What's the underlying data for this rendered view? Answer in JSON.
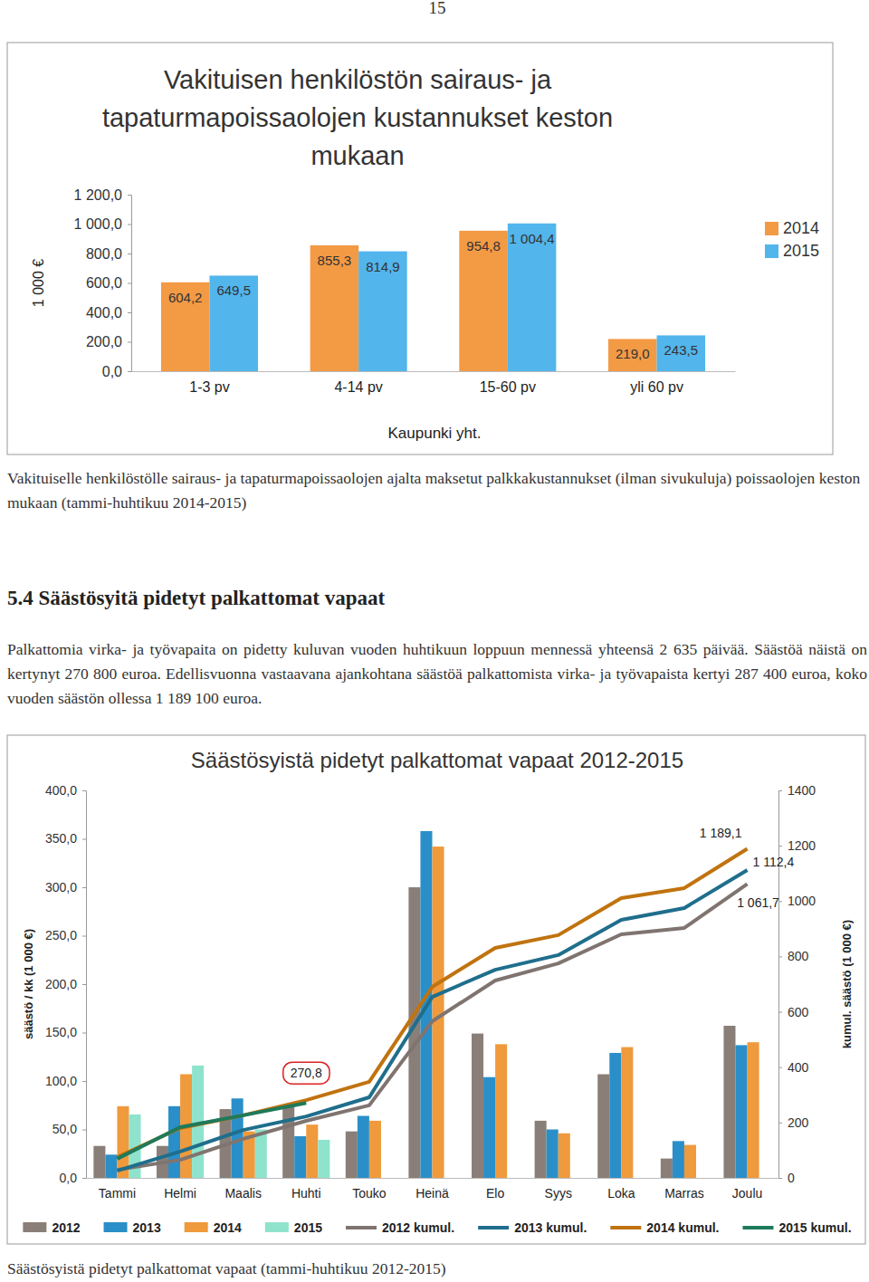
{
  "page": {
    "number": "15",
    "caption_1": "Vakituiselle henkilöstölle sairaus- ja tapaturmapoissaolojen ajalta maksetut palkkakustannukset (ilman sivukuluja) poissaolojen keston mukaan (tammi-huhtikuu 2014-2015)",
    "heading": "5.4 Säästösyitä pidetyt palkattomat vapaat",
    "paragraph": "Palkattomia virka- ja työvapaita on pidetty kuluvan vuoden huhtikuun loppuun mennessä yhteensä 2 635 päivää. Säästöä näistä on kertynyt 270 800 euroa. Edellisvuonna vastaavana ajankohtana säästöä palkattomista virka- ja työvapaista kertyi 287 400 euroa, koko vuoden säästön ollessa 1 189 100 euroa.",
    "caption_2": "Säästösyistä pidetyt palkattomat vapaat (tammi-huhtikuu 2012-2015)"
  },
  "chart_data": [
    {
      "type": "bar",
      "title": "Vakituisen henkilöstön sairaus- ja tapaturmapoissaolojen kustannukset keston mukaan",
      "x_label": "Kaupunki yht.",
      "y_label": "1 000 €",
      "categories": [
        "1-3 pv",
        "4-14 pv",
        "15-60 pv",
        "yli 60 pv"
      ],
      "series": [
        {
          "name": "2014",
          "color": "#f39a45",
          "values": [
            604.2,
            855.3,
            954.8,
            219.0
          ],
          "value_labels": [
            "604,2",
            "855,3",
            "954,8",
            "219,0"
          ]
        },
        {
          "name": "2015",
          "color": "#52b5ec",
          "values": [
            649.5,
            814.9,
            1004.4,
            243.5
          ],
          "value_labels": [
            "649,5",
            "814,9",
            "1 004,4",
            "243,5"
          ]
        }
      ],
      "ylim": [
        0,
        1200
      ],
      "yticks": [
        {
          "value": 0,
          "label": "0,0"
        },
        {
          "value": 200,
          "label": "200,0"
        },
        {
          "value": 400,
          "label": "400,0"
        },
        {
          "value": 600,
          "label": "600,0"
        },
        {
          "value": 800,
          "label": "800,0"
        },
        {
          "value": 1000,
          "label": "1 000,0"
        },
        {
          "value": 1200,
          "label": "1 200,0"
        }
      ],
      "legend": "right",
      "data_labels": true
    },
    {
      "type": "bar",
      "title": "Säästösyistä pidetyt palkattomat vapaat 2012-2015",
      "y_label": "säästö / kk (1 000 €)",
      "y2_label": "kumul. säästö (1 000 €)",
      "categories": [
        "Tammi",
        "Helmi",
        "Maalis",
        "Huhti",
        "Touko",
        "Heinä",
        "Elo",
        "Syys",
        "Loka",
        "Marras",
        "Joulu"
      ],
      "series": [
        {
          "name": "2012",
          "type": "bar",
          "color": "#8a7f78",
          "values": [
            33,
            33,
            71,
            74,
            48,
            300,
            149,
            59,
            107,
            20,
            157
          ]
        },
        {
          "name": "2013",
          "type": "bar",
          "color": "#2a8fc9",
          "values": [
            24,
            74,
            82,
            43,
            64,
            358,
            104,
            50,
            129,
            38,
            137
          ]
        },
        {
          "name": "2014",
          "type": "bar",
          "color": "#ef9a3c",
          "values": [
            74,
            107,
            48,
            55,
            59,
            342,
            138,
            46,
            135,
            34,
            140
          ]
        },
        {
          "name": "2015",
          "type": "bar",
          "color": "#8fe3cc",
          "values": [
            65.5,
            116,
            50,
            39.3,
            null,
            null,
            null,
            null,
            null,
            null,
            null
          ]
        },
        {
          "name": "2012 kumul.",
          "type": "line",
          "axis": "y2",
          "color": "#7f7470",
          "values": [
            29,
            65,
            141,
            206,
            262,
            566,
            713,
            775,
            880,
            903,
            1061.7
          ],
          "value_labels": [
            null,
            null,
            null,
            null,
            null,
            null,
            null,
            null,
            null,
            null,
            "1 061,7"
          ]
        },
        {
          "name": "2013 kumul.",
          "type": "line",
          "axis": "y2",
          "color": "#1f6e8c",
          "values": [
            26,
            95,
            173,
            222,
            291,
            654,
            752,
            805,
            932,
            975,
            1112.4
          ],
          "value_labels": [
            null,
            null,
            null,
            null,
            null,
            null,
            null,
            null,
            null,
            null,
            "1 112,4"
          ]
        },
        {
          "name": "2014 kumul.",
          "type": "line",
          "axis": "y2",
          "color": "#c0730f",
          "values": [
            75,
            180,
            226,
            281,
            347,
            690,
            831,
            877,
            1011,
            1047,
            1189.1
          ],
          "value_labels": [
            null,
            null,
            null,
            null,
            null,
            null,
            null,
            null,
            null,
            null,
            "1 189,1"
          ]
        },
        {
          "name": "2015 kumul.",
          "type": "line",
          "axis": "y2",
          "color": "#1e7a5a",
          "values": [
            69,
            183,
            226,
            270.8,
            null,
            null,
            null,
            null,
            null,
            null,
            null
          ],
          "value_labels": [
            null,
            null,
            null,
            "270,8",
            null,
            null,
            null,
            null,
            null,
            null,
            null
          ]
        }
      ],
      "ylim": [
        0,
        400
      ],
      "yticks": [
        {
          "value": 0,
          "label": "0,0"
        },
        {
          "value": 50,
          "label": "50,0"
        },
        {
          "value": 100,
          "label": "100,0"
        },
        {
          "value": 150,
          "label": "150,0"
        },
        {
          "value": 200,
          "label": "200,0"
        },
        {
          "value": 250,
          "label": "250,0"
        },
        {
          "value": 300,
          "label": "300,0"
        },
        {
          "value": 350,
          "label": "350,0"
        },
        {
          "value": 400,
          "label": "400,0"
        }
      ],
      "y2lim": [
        0,
        1400
      ],
      "y2ticks": [
        0,
        200,
        400,
        600,
        800,
        1000,
        1200,
        1400
      ],
      "legend": "bottom"
    }
  ]
}
